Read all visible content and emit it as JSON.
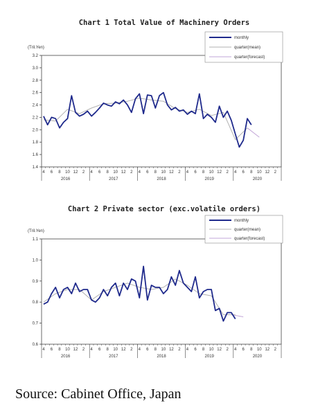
{
  "source": "Source: Cabinet Office, Japan",
  "chart_data": [
    {
      "type": "line",
      "title": "Chart 1 Total Value of Machinery Orders",
      "unit_label": "(Tril.Yen)",
      "ylim": [
        1.4,
        3.2
      ],
      "yticks": [
        "1.4",
        "1.6",
        "1.8",
        "2.0",
        "2.2",
        "2.4",
        "2.6",
        "2.8",
        "3.0",
        "3.2"
      ],
      "month_labels": [
        "4",
        "6",
        "8",
        "10",
        "12",
        "2"
      ],
      "years": [
        "2016",
        "2017",
        "2018",
        "2019",
        "2020"
      ],
      "x_start": "2016-04",
      "legend": [
        "monthly",
        "quarter(mean)",
        "quarter(forecast)"
      ],
      "legend_position": "top-right",
      "series": [
        {
          "name": "monthly",
          "color": "#1f2a8c",
          "values": [
            2.22,
            2.08,
            2.2,
            2.18,
            2.03,
            2.12,
            2.18,
            2.55,
            2.28,
            2.22,
            2.25,
            2.3,
            2.22,
            2.28,
            2.35,
            2.43,
            2.4,
            2.38,
            2.45,
            2.42,
            2.48,
            2.4,
            2.28,
            2.5,
            2.58,
            2.26,
            2.56,
            2.55,
            2.35,
            2.55,
            2.6,
            2.4,
            2.32,
            2.36,
            2.3,
            2.32,
            2.25,
            2.3,
            2.26,
            2.58,
            2.18,
            2.25,
            2.2,
            2.12,
            2.38,
            2.2,
            2.3,
            2.15,
            1.93,
            1.72,
            1.83,
            2.18,
            2.08
          ]
        },
        {
          "name": "quarter(mean)",
          "color": "#b0b0b0",
          "values": [
            2.16,
            null,
            null,
            2.14,
            null,
            null,
            2.33,
            null,
            null,
            2.26,
            null,
            null,
            2.35,
            null,
            null,
            2.42,
            null,
            null,
            2.43,
            null,
            null,
            2.46,
            null,
            null,
            2.51,
            null,
            null,
            2.48,
            null,
            null,
            2.46,
            null,
            null,
            2.34,
            null,
            null,
            2.28,
            null,
            null,
            2.33,
            null,
            null,
            2.23,
            null,
            null,
            2.28,
            null,
            null,
            1.84,
            null,
            null,
            2.03
          ]
        },
        {
          "name": "quarter(forecast)",
          "color": "#c2a6d8",
          "values": [
            null,
            null,
            null,
            null,
            null,
            null,
            null,
            null,
            null,
            null,
            null,
            null,
            null,
            null,
            null,
            null,
            null,
            null,
            null,
            null,
            null,
            null,
            null,
            null,
            null,
            null,
            null,
            null,
            null,
            null,
            null,
            null,
            null,
            null,
            null,
            null,
            null,
            null,
            null,
            null,
            null,
            null,
            null,
            null,
            null,
            null,
            null,
            null,
            null,
            null,
            null,
            2.03,
            null,
            null,
            1.88
          ]
        }
      ]
    },
    {
      "type": "line",
      "title": "Chart 2 Private sector (exc.volatile orders)",
      "unit_label": "(Tril.Yen)",
      "ylim": [
        0.6,
        1.1
      ],
      "yticks": [
        "0.6",
        "0.7",
        "0.8",
        "0.9",
        "1.0",
        "1.1"
      ],
      "month_labels": [
        "4",
        "6",
        "8",
        "10",
        "12",
        "2"
      ],
      "years": [
        "2016",
        "2017",
        "2018",
        "2019",
        "2020"
      ],
      "x_start": "2016-04",
      "legend": [
        "monthly",
        "quarter(mean)",
        "quarter(forecast)"
      ],
      "legend_position": "top-right",
      "series": [
        {
          "name": "monthly",
          "color": "#1f2a8c",
          "values": [
            0.79,
            0.8,
            0.84,
            0.87,
            0.82,
            0.86,
            0.87,
            0.84,
            0.89,
            0.85,
            0.86,
            0.86,
            0.81,
            0.8,
            0.82,
            0.86,
            0.83,
            0.87,
            0.89,
            0.83,
            0.89,
            0.86,
            0.91,
            0.9,
            0.82,
            0.97,
            0.81,
            0.88,
            0.87,
            0.87,
            0.84,
            0.86,
            0.92,
            0.88,
            0.95,
            0.89,
            0.87,
            0.85,
            0.92,
            0.82,
            0.85,
            0.86,
            0.86,
            0.76,
            0.77,
            0.71,
            0.75,
            0.75,
            0.72
          ]
        },
        {
          "name": "quarter(mean)",
          "color": "#b0b0b0",
          "values": [
            0.8,
            null,
            null,
            0.84,
            null,
            null,
            0.86,
            null,
            null,
            0.86,
            null,
            null,
            0.81,
            null,
            null,
            0.85,
            null,
            null,
            0.87,
            null,
            null,
            0.89,
            null,
            null,
            0.87,
            null,
            null,
            0.86,
            null,
            null,
            0.87,
            null,
            null,
            0.91,
            null,
            null,
            0.88,
            null,
            null,
            0.84,
            null,
            null,
            0.83,
            null,
            null,
            0.74,
            null,
            null,
            0.74
          ]
        },
        {
          "name": "quarter(forecast)",
          "color": "#c2a6d8",
          "values": [
            null,
            null,
            null,
            null,
            null,
            null,
            null,
            null,
            null,
            null,
            null,
            null,
            null,
            null,
            null,
            null,
            null,
            null,
            null,
            null,
            null,
            null,
            null,
            null,
            null,
            null,
            null,
            null,
            null,
            null,
            null,
            null,
            null,
            null,
            null,
            null,
            null,
            null,
            null,
            null,
            null,
            null,
            null,
            null,
            null,
            null,
            null,
            0.74,
            null,
            null,
            0.73
          ]
        }
      ]
    }
  ]
}
